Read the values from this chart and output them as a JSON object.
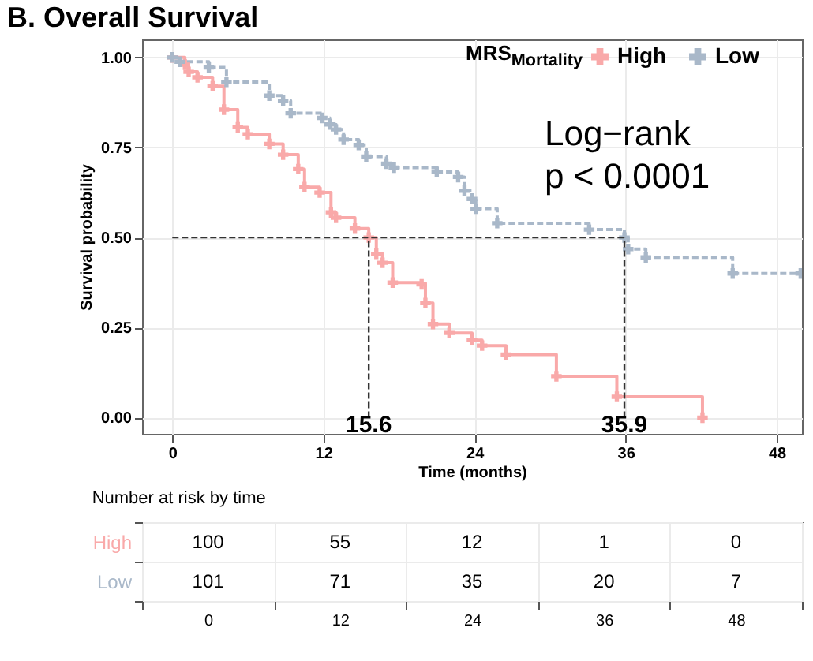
{
  "chart_data": [
    {
      "type": "step",
      "title": "B. Overall Survival",
      "xlabel": "Time (months)",
      "ylabel": "Survival probability",
      "legend_title": "MRS$_{Mortality}$",
      "legend": "top right",
      "grid": true,
      "marker": "cross",
      "xlim": [
        -2.4,
        50
      ],
      "xticks": [
        0,
        12,
        24,
        36,
        48
      ],
      "ylim": [
        -0.045,
        1.05
      ],
      "yticks": [
        {
          "value": 0,
          "label": "0.00"
        },
        {
          "value": 0.25,
          "label": "0.25"
        },
        {
          "value": 0.5,
          "label": "0.50"
        },
        {
          "value": 0.75,
          "label": "0.75"
        },
        {
          "value": 1,
          "label": "1.00"
        }
      ],
      "series": [
        {
          "name": "High",
          "color": "#f9a9a9",
          "line_style": "solid",
          "x": [
            0,
            1,
            1.3,
            2,
            3.2,
            4.1,
            5.2,
            6,
            7.7,
            8.8,
            10,
            10.5,
            11.7,
            12.6,
            13,
            14.5,
            15.6,
            16.2,
            16.7,
            17.5,
            19.8,
            20.1,
            20.7,
            22,
            23.8,
            24.6,
            26.5,
            30.5,
            35.3,
            42.1
          ],
          "values": [
            1,
            0.98,
            0.96,
            0.945,
            0.92,
            0.855,
            0.806,
            0.787,
            0.76,
            0.73,
            0.69,
            0.64,
            0.625,
            0.57,
            0.555,
            0.525,
            0.5,
            0.455,
            0.43,
            0.375,
            0.37,
            0.318,
            0.26,
            0.235,
            0.215,
            0.2,
            0.175,
            0.115,
            0.058,
            0
          ]
        },
        {
          "name": "Low",
          "color": "#a9b8c9",
          "line_style": "dashed",
          "x": [
            0,
            0.6,
            2.9,
            4.3,
            7.7,
            8.8,
            9.4,
            11.9,
            12.5,
            13,
            13.6,
            14.8,
            15.4,
            17,
            17.6,
            21,
            22.7,
            23.2,
            23.8,
            24.1,
            25.8,
            33.1,
            35.9,
            36.2,
            37.6,
            44.5,
            49.9
          ],
          "values": [
            1,
            0.988,
            0.972,
            0.932,
            0.894,
            0.88,
            0.845,
            0.832,
            0.814,
            0.8,
            0.772,
            0.757,
            0.725,
            0.705,
            0.694,
            0.682,
            0.668,
            0.63,
            0.607,
            0.58,
            0.54,
            0.522,
            0.5,
            0.468,
            0.445,
            0.4,
            0.4
          ]
        }
      ],
      "ref_lines": [
        {
          "axis": "y",
          "value": 0.5,
          "line_style": "dashed",
          "color": "#333333"
        },
        {
          "axis": "x",
          "value": 15.6,
          "label": "15.6",
          "line_style": "dashed",
          "color": "#333333"
        },
        {
          "axis": "x",
          "value": 35.9,
          "label": "35.9",
          "line_style": "dashed",
          "color": "#333333"
        }
      ],
      "annotations": [
        "Log−rank\np < 0.0001"
      ]
    },
    {
      "type": "heatmap",
      "title": "Number at risk by time",
      "grid": true,
      "data_labels": true,
      "categories": [
        "0",
        "12",
        "24",
        "36",
        "48"
      ],
      "y_categories": [
        "High",
        "Low"
      ],
      "cells": [
        [
          100,
          55,
          12,
          1,
          0
        ],
        [
          101,
          71,
          35,
          20,
          7
        ]
      ]
    }
  ]
}
